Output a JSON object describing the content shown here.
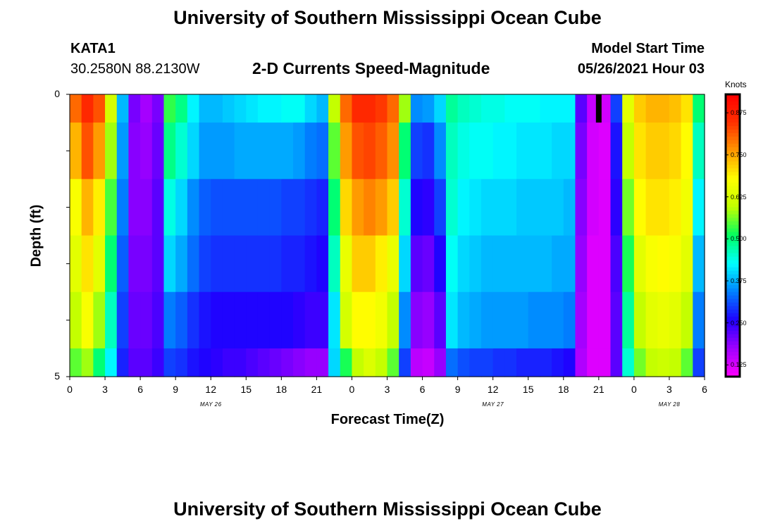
{
  "header": {
    "title": "University of Southern Mississippi Ocean Cube",
    "station": "KATA1",
    "coordinates": "30.2580N  88.2130W",
    "subtitle": "2-D Currents Speed-Magnitude",
    "model_start_label": "Model Start Time",
    "model_start_value": "05/26/2021 Hour 03"
  },
  "footer": {
    "title": "University of Southern Mississippi Ocean Cube"
  },
  "colors": {
    "colormap": [
      "#ff00ff",
      "#a000ff",
      "#2000ff",
      "#0080ff",
      "#00ffff",
      "#00ff60",
      "#c0ff00",
      "#ffff00",
      "#ff9900",
      "#ff3000",
      "#ff0000"
    ]
  },
  "chart_data": {
    "type": "heatmap",
    "title": "2-D Currents Speed-Magnitude",
    "xlabel": "Forecast Time(Z)",
    "ylabel": "Depth (ft)",
    "xlim": [
      0,
      54
    ],
    "ylim": [
      0,
      5
    ],
    "x_tick_values": [
      0,
      3,
      6,
      9,
      12,
      15,
      18,
      21,
      24,
      27,
      30,
      33,
      36,
      39,
      42,
      45,
      48,
      51,
      54
    ],
    "x_tick_labels": [
      "0",
      "3",
      "6",
      "9",
      "12",
      "15",
      "18",
      "21",
      "0",
      "3",
      "6",
      "9",
      "12",
      "15",
      "18",
      "21",
      "0",
      "3",
      "6"
    ],
    "y_tick_labels": [
      "0",
      "5"
    ],
    "date_labels": [
      {
        "text": "MAY 26",
        "x": 12
      },
      {
        "text": "MAY 27",
        "x": 36
      },
      {
        "text": "MAY 28",
        "x": 51
      }
    ],
    "colorbar": {
      "title": "Knots",
      "range": [
        0.09,
        0.93
      ],
      "tick_values": [
        0.125,
        0.25,
        0.375,
        0.5,
        0.625,
        0.75,
        0.875
      ],
      "tick_labels": [
        "0.125",
        "0.250",
        "0.375",
        "0.500",
        "0.625",
        "0.750",
        "0.875"
      ]
    },
    "model_start_marker": {
      "x": 45,
      "depth_to": 0.5
    },
    "depth_layers": [
      0,
      0.5,
      1.5,
      2.5,
      3.5,
      4.5,
      5.0
    ],
    "speed_knots": [
      {
        "x": 0,
        "values": [
          0.8,
          0.74,
          0.67,
          0.64,
          0.6,
          0.55
        ]
      },
      {
        "x": 1,
        "values": [
          0.86,
          0.82,
          0.74,
          0.7,
          0.67,
          0.58
        ]
      },
      {
        "x": 2,
        "values": [
          0.82,
          0.76,
          0.69,
          0.64,
          0.58,
          0.5
        ]
      },
      {
        "x": 3,
        "values": [
          0.62,
          0.58,
          0.54,
          0.5,
          0.46,
          0.42
        ]
      },
      {
        "x": 4,
        "values": [
          0.38,
          0.36,
          0.34,
          0.32,
          0.3,
          0.28
        ]
      },
      {
        "x": 5,
        "values": [
          0.2,
          0.19,
          0.19,
          0.2,
          0.21,
          0.22
        ]
      },
      {
        "x": 6,
        "values": [
          0.17,
          0.18,
          0.19,
          0.2,
          0.21,
          0.22
        ]
      },
      {
        "x": 7,
        "values": [
          0.2,
          0.21,
          0.22,
          0.22,
          0.23,
          0.24
        ]
      },
      {
        "x": 8,
        "values": [
          0.53,
          0.49,
          0.44,
          0.4,
          0.34,
          0.3
        ]
      },
      {
        "x": 9,
        "values": [
          0.49,
          0.45,
          0.4,
          0.37,
          0.32,
          0.29
        ]
      },
      {
        "x": 10,
        "values": [
          0.42,
          0.4,
          0.35,
          0.33,
          0.29,
          0.27
        ]
      },
      {
        "x": 11,
        "values": [
          0.38,
          0.36,
          0.32,
          0.3,
          0.27,
          0.26
        ]
      },
      {
        "x": 12,
        "values": [
          0.38,
          0.36,
          0.31,
          0.29,
          0.26,
          0.25
        ]
      },
      {
        "x": 13,
        "values": [
          0.39,
          0.36,
          0.31,
          0.29,
          0.26,
          0.24
        ]
      },
      {
        "x": 14,
        "values": [
          0.4,
          0.37,
          0.31,
          0.29,
          0.26,
          0.24
        ]
      },
      {
        "x": 15,
        "values": [
          0.41,
          0.37,
          0.31,
          0.29,
          0.26,
          0.23
        ]
      },
      {
        "x": 16,
        "values": [
          0.42,
          0.37,
          0.31,
          0.29,
          0.26,
          0.22
        ]
      },
      {
        "x": 17,
        "values": [
          0.42,
          0.37,
          0.31,
          0.29,
          0.26,
          0.21
        ]
      },
      {
        "x": 18,
        "values": [
          0.43,
          0.37,
          0.3,
          0.28,
          0.26,
          0.2
        ]
      },
      {
        "x": 19,
        "values": [
          0.43,
          0.36,
          0.3,
          0.28,
          0.25,
          0.19
        ]
      },
      {
        "x": 20,
        "values": [
          0.4,
          0.34,
          0.29,
          0.27,
          0.24,
          0.18
        ]
      },
      {
        "x": 21,
        "values": [
          0.38,
          0.33,
          0.28,
          0.26,
          0.24,
          0.18
        ]
      },
      {
        "x": 22,
        "values": [
          0.6,
          0.55,
          0.5,
          0.46,
          0.41,
          0.4
        ]
      },
      {
        "x": 23,
        "values": [
          0.8,
          0.76,
          0.71,
          0.65,
          0.62,
          0.52
        ]
      },
      {
        "x": 24,
        "values": [
          0.86,
          0.82,
          0.76,
          0.72,
          0.68,
          0.6
        ]
      },
      {
        "x": 25,
        "values": [
          0.86,
          0.83,
          0.78,
          0.72,
          0.68,
          0.63
        ]
      },
      {
        "x": 26,
        "values": [
          0.84,
          0.81,
          0.76,
          0.69,
          0.66,
          0.6
        ]
      },
      {
        "x": 27,
        "values": [
          0.8,
          0.77,
          0.72,
          0.65,
          0.6,
          0.55
        ]
      },
      {
        "x": 28,
        "values": [
          0.58,
          0.5,
          0.45,
          0.4,
          0.35,
          0.3
        ]
      },
      {
        "x": 29,
        "values": [
          0.35,
          0.3,
          0.26,
          0.22,
          0.19,
          0.15
        ]
      },
      {
        "x": 30,
        "values": [
          0.36,
          0.29,
          0.25,
          0.21,
          0.18,
          0.14
        ]
      },
      {
        "x": 31,
        "values": [
          0.4,
          0.35,
          0.3,
          0.26,
          0.22,
          0.18
        ]
      },
      {
        "x": 32,
        "values": [
          0.48,
          0.46,
          0.45,
          0.43,
          0.41,
          0.33
        ]
      },
      {
        "x": 33,
        "values": [
          0.46,
          0.44,
          0.42,
          0.4,
          0.38,
          0.31
        ]
      },
      {
        "x": 34,
        "values": [
          0.45,
          0.43,
          0.41,
          0.39,
          0.37,
          0.3
        ]
      },
      {
        "x": 35,
        "values": [
          0.44,
          0.43,
          0.4,
          0.38,
          0.36,
          0.3
        ]
      },
      {
        "x": 36,
        "values": [
          0.44,
          0.42,
          0.4,
          0.38,
          0.36,
          0.29
        ]
      },
      {
        "x": 37,
        "values": [
          0.43,
          0.42,
          0.4,
          0.38,
          0.36,
          0.29
        ]
      },
      {
        "x": 38,
        "values": [
          0.43,
          0.41,
          0.39,
          0.38,
          0.36,
          0.28
        ]
      },
      {
        "x": 39,
        "values": [
          0.43,
          0.41,
          0.39,
          0.38,
          0.35,
          0.28
        ]
      },
      {
        "x": 40,
        "values": [
          0.42,
          0.41,
          0.39,
          0.38,
          0.35,
          0.28
        ]
      },
      {
        "x": 41,
        "values": [
          0.42,
          0.4,
          0.39,
          0.37,
          0.35,
          0.27
        ]
      },
      {
        "x": 42,
        "values": [
          0.42,
          0.4,
          0.38,
          0.37,
          0.34,
          0.26
        ]
      },
      {
        "x": 43,
        "values": [
          0.22,
          0.2,
          0.19,
          0.18,
          0.17,
          0.16
        ]
      },
      {
        "x": 44,
        "values": [
          0.14,
          0.13,
          0.13,
          0.12,
          0.12,
          0.12
        ]
      },
      {
        "x": 45,
        "values": [
          0.13,
          0.12,
          0.12,
          0.12,
          0.12,
          0.12
        ]
      },
      {
        "x": 46,
        "values": [
          0.3,
          0.27,
          0.25,
          0.23,
          0.22,
          0.22
        ]
      },
      {
        "x": 47,
        "values": [
          0.64,
          0.6,
          0.56,
          0.52,
          0.48,
          0.45
        ]
      },
      {
        "x": 48,
        "values": [
          0.72,
          0.7,
          0.68,
          0.64,
          0.6,
          0.56
        ]
      },
      {
        "x": 49,
        "values": [
          0.74,
          0.72,
          0.7,
          0.67,
          0.64,
          0.6
        ]
      },
      {
        "x": 50,
        "values": [
          0.74,
          0.72,
          0.7,
          0.68,
          0.65,
          0.61
        ]
      },
      {
        "x": 51,
        "values": [
          0.73,
          0.71,
          0.69,
          0.67,
          0.64,
          0.6
        ]
      },
      {
        "x": 52,
        "values": [
          0.7,
          0.68,
          0.66,
          0.64,
          0.6,
          0.55
        ]
      },
      {
        "x": 53,
        "values": [
          0.5,
          0.46,
          0.42,
          0.38,
          0.34,
          0.3
        ]
      }
    ]
  }
}
